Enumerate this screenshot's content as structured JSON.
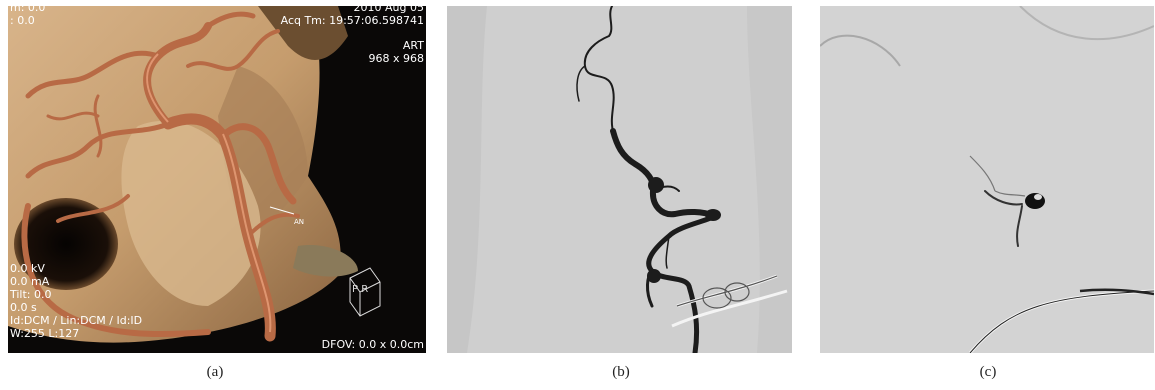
{
  "figure": {
    "panel_a": {
      "overlay_top_left": [
        "m: 0.0",
        ": 0.0"
      ],
      "overlay_top_right": [
        "2010 Aug 05",
        "Acq Tm: 19:57:06.598741",
        "ART",
        "968 x 968"
      ],
      "overlay_bottom_left": [
        "0.0 kV",
        "0.0 mA",
        "Tilt: 0.0",
        "0.0 s",
        "Id:DCM / Lin:DCM / Id:ID",
        "W:255  L:127"
      ],
      "overlay_bottom_right": "DFOV: 0.0 x 0.0cm",
      "annotation": "AN",
      "orientation_cube": "P  R",
      "caption": "(a)"
    },
    "panel_b": {
      "caption": "(b)"
    },
    "panel_c": {
      "caption": "(c)"
    }
  },
  "colors": {
    "background_a": "#0a0807",
    "bone": "#c9a478",
    "vessel": "#b86a45",
    "background_b": "#cfcfcf",
    "background_c": "#d3d3d3",
    "contrast": "#1c1c1c"
  }
}
